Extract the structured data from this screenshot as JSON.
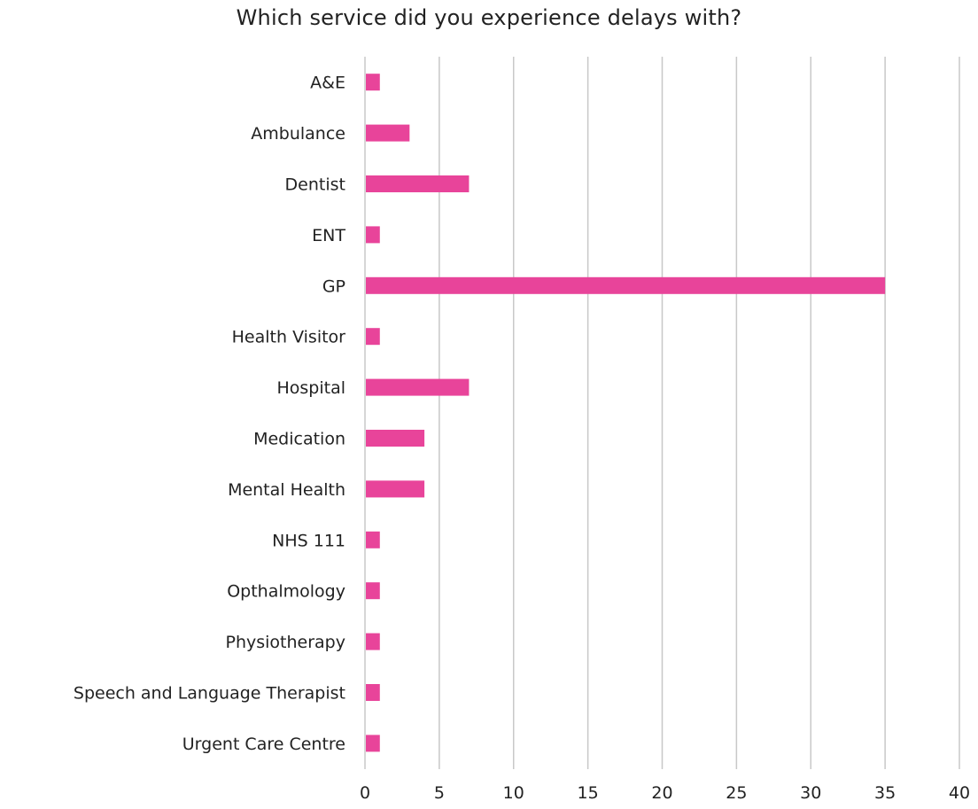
{
  "chart_data": {
    "type": "bar",
    "orientation": "horizontal",
    "title": "Which service did you experience delays with?",
    "xlabel": "",
    "ylabel": "",
    "categories": [
      "A&E",
      "Ambulance",
      "Dentist",
      "ENT",
      "GP",
      "Health Visitor",
      "Hospital",
      "Medication",
      "Mental Health",
      "NHS 111",
      "Opthalmology",
      "Physiotherapy",
      "Speech and Language Therapist",
      "Urgent Care Centre"
    ],
    "values": [
      1,
      3,
      7,
      1,
      35,
      1,
      7,
      4,
      4,
      1,
      1,
      1,
      1,
      1
    ],
    "xlim": [
      0,
      40
    ],
    "x_ticks": [
      0,
      5,
      10,
      15,
      20,
      25,
      30,
      35,
      40
    ],
    "grid": "vertical",
    "legend": "none",
    "bar_color": "#e8449a"
  }
}
